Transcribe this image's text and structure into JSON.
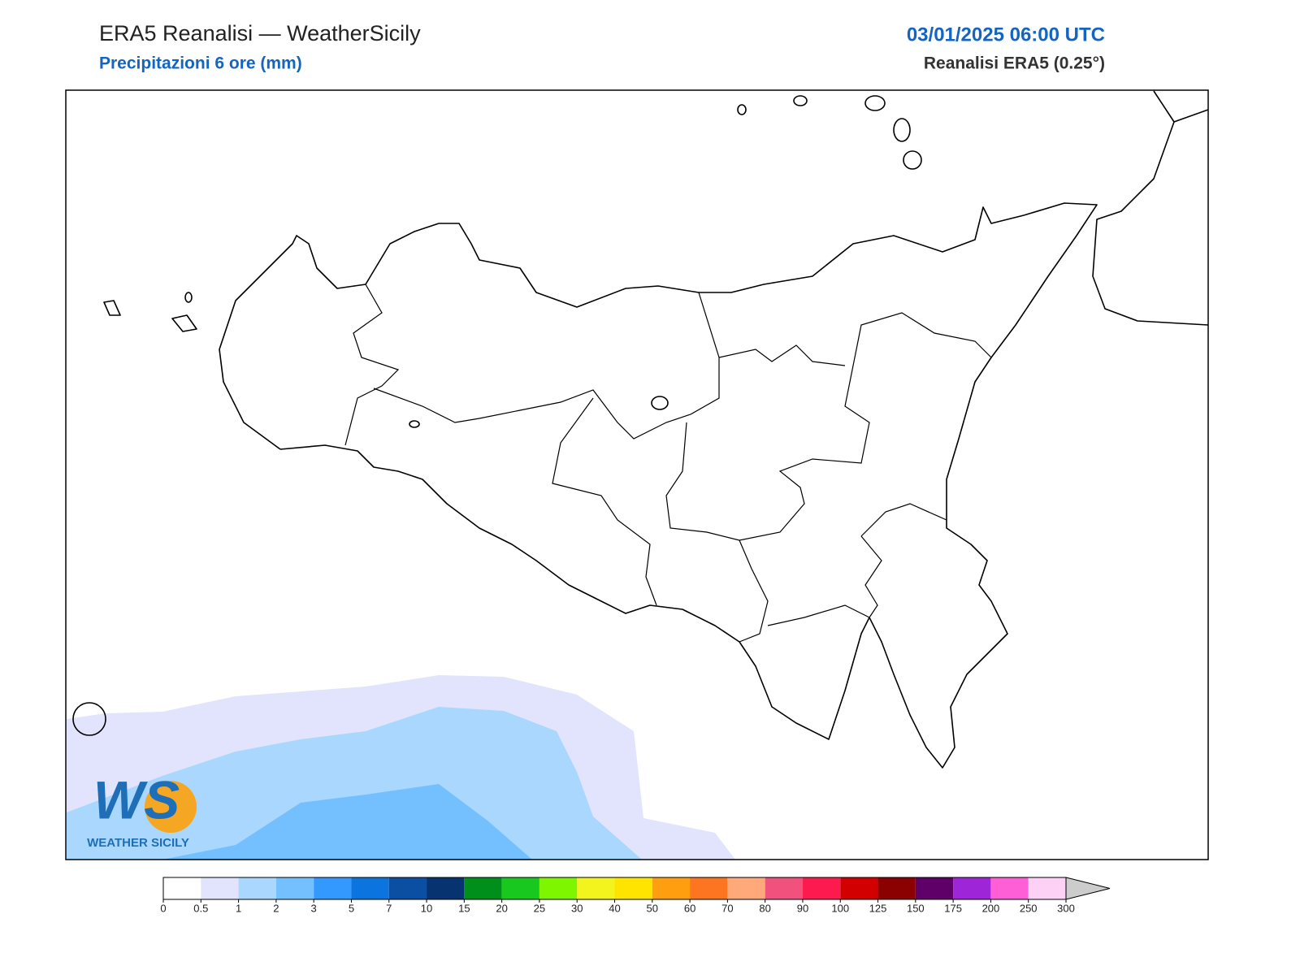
{
  "header": {
    "title": "ERA5 Reanalisi — WeatherSicily",
    "subtitle": "Precipitazioni 6 ore (mm)",
    "datetime": "03/01/2025 06:00 UTC",
    "source": "Reanalisi ERA5 (0.25°)"
  },
  "logo": {
    "initials": "WS",
    "name": "WEATHER SICILY"
  },
  "colorbar": {
    "levels": [
      0,
      0.5,
      1,
      2,
      3,
      5,
      7,
      10,
      15,
      20,
      25,
      30,
      40,
      50,
      60,
      70,
      80,
      90,
      100,
      125,
      150,
      175,
      200,
      250,
      300
    ],
    "colors": [
      "#ffffff",
      "#e1e4fc",
      "#aad7fe",
      "#74c0fe",
      "#3399ff",
      "#0b74de",
      "#0b4fa3",
      "#073470",
      "#018f1c",
      "#19c81e",
      "#7df600",
      "#f3f41d",
      "#ffe400",
      "#ff9f10",
      "#fd7520",
      "#ffa97b",
      "#f0517d",
      "#fc1a4f",
      "#d30001",
      "#8b0001",
      "#5e0068",
      "#9f26d8",
      "#ff5fd6",
      "#fdd1f5"
    ],
    "extend_color": "#cccccc"
  }
}
